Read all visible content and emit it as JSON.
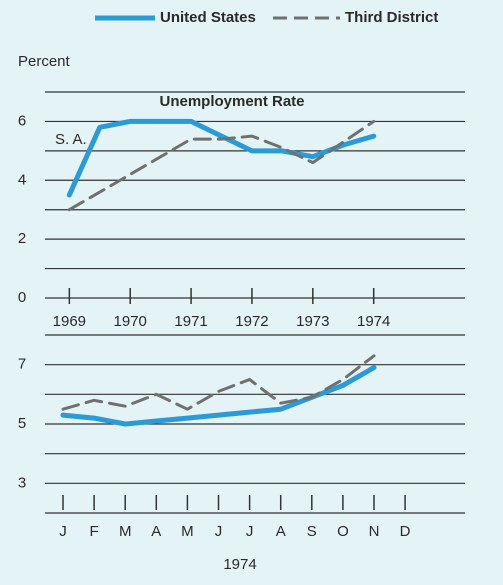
{
  "chart_data": [
    {
      "type": "line",
      "title": "Unemployment Rate",
      "y_label": "Percent",
      "annotation": "S. A.",
      "x": [
        1969,
        1969.5,
        1970,
        1970.5,
        1971,
        1971.5,
        1972,
        1972.5,
        1973,
        1973.5,
        1974
      ],
      "xlim": [
        1968.6,
        1975.5
      ],
      "xticks": [
        1969,
        1970,
        1971,
        1972,
        1973,
        1974
      ],
      "ylim": [
        0,
        7
      ],
      "yticks": [
        0,
        2,
        4,
        6
      ],
      "ygrid": [
        1,
        2,
        3,
        4,
        5,
        6,
        7
      ],
      "series": [
        {
          "name": "United States",
          "color": "#2a9ad8",
          "line_style": "solid",
          "values": [
            3.5,
            5.8,
            6.0,
            6.0,
            6.0,
            5.5,
            5.0,
            5.0,
            4.8,
            5.2,
            5.5
          ]
        },
        {
          "name": "Third District",
          "color": "#707070",
          "line_style": "dashed",
          "values": [
            3.0,
            3.6,
            4.2,
            4.8,
            5.4,
            5.4,
            5.5,
            5.1,
            4.6,
            5.3,
            6.0
          ]
        }
      ]
    },
    {
      "type": "line",
      "x_label": "1974",
      "categories": [
        "J",
        "F",
        "M",
        "A",
        "M",
        "J",
        "J",
        "A",
        "S",
        "O",
        "N",
        "D"
      ],
      "ylim": [
        2,
        8
      ],
      "yticks": [
        3,
        5,
        7
      ],
      "ygrid": [
        3,
        4,
        5,
        6,
        7,
        8
      ],
      "series": [
        {
          "color": "#2a9ad8",
          "line_style": "solid",
          "values": [
            5.3,
            5.2,
            5.0,
            5.1,
            5.2,
            5.3,
            5.4,
            5.5,
            5.9,
            6.3,
            6.9,
            null
          ]
        },
        {
          "color": "#707070",
          "line_style": "dashed",
          "values": [
            5.5,
            5.8,
            5.6,
            6.0,
            5.5,
            6.1,
            6.5,
            5.7,
            5.9,
            6.5,
            7.3,
            null
          ]
        }
      ]
    }
  ]
}
